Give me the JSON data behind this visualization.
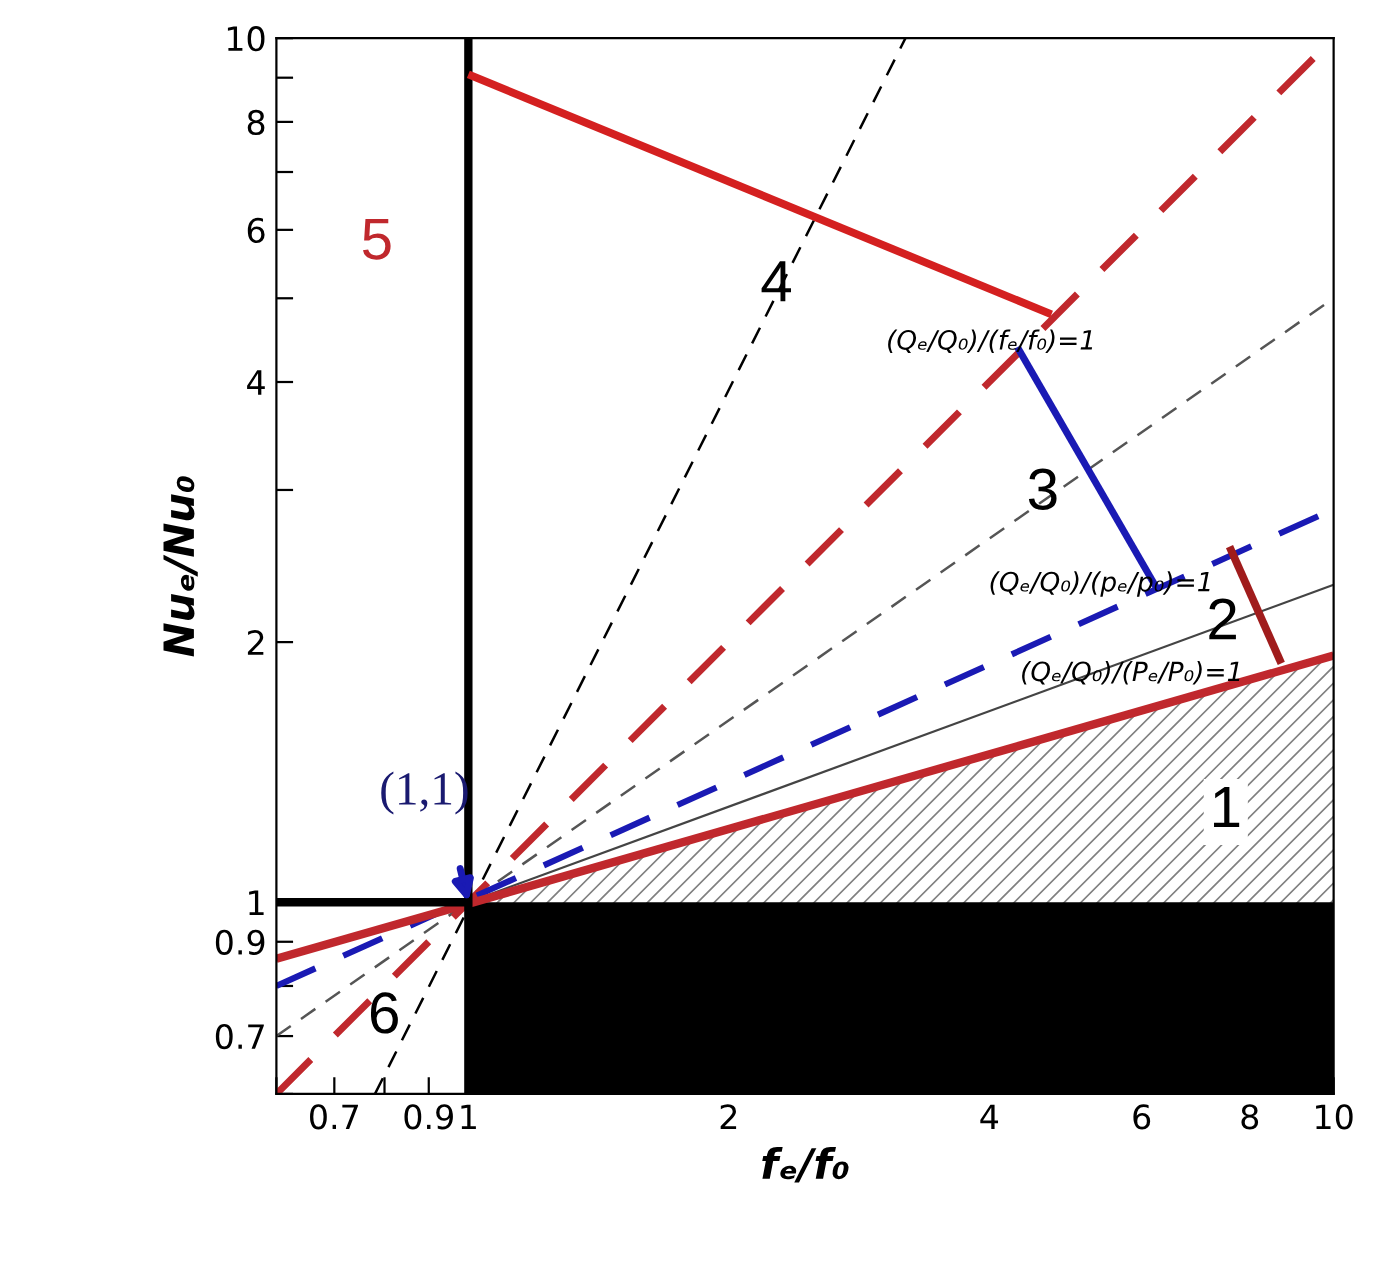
{
  "chart_data": {
    "type": "line",
    "xlabel": "fₑ/f₀",
    "ylabel": "Nuₑ/Nu₀",
    "log": "xy",
    "xlim": [
      0.6,
      10
    ],
    "ylim": [
      0.6,
      10
    ],
    "xticks": [
      {
        "value": 0.6,
        "label": null
      },
      0.7,
      {
        "value": 0.8,
        "label": null
      },
      0.9,
      1,
      2,
      {
        "value": 3,
        "label": null
      },
      4,
      {
        "value": 5,
        "label": null
      },
      6,
      {
        "value": 7,
        "label": null
      },
      8,
      {
        "value": 9,
        "label": null
      },
      10
    ],
    "yticks": [
      {
        "value": 0.6,
        "label": null
      },
      0.7,
      {
        "value": 0.8,
        "label": null
      },
      0.9,
      1,
      2,
      {
        "value": 3,
        "label": null
      },
      4,
      {
        "value": 5,
        "label": null
      },
      6,
      {
        "value": 7,
        "label": null
      },
      8,
      {
        "value": 9,
        "label": null
      },
      10
    ],
    "grid": false,
    "legend": false,
    "series": [
      {
        "type": "area",
        "color": "#808080",
        "x": [
          1,
          10
        ],
        "values": [
          1,
          1.93
        ]
      },
      {
        "type": "area",
        "color": "#000000",
        "x": [
          1,
          10
        ],
        "values": [
          1,
          1
        ]
      },
      {
        "color": "#000000",
        "line_style": "dashed",
        "x": [
          0.78,
          3.2
        ],
        "values": [
          0.6,
          10
        ]
      },
      {
        "color": "#555555",
        "line_style": "dashed",
        "x": [
          0.6,
          10
        ],
        "values": [
          0.7,
          5.0
        ]
      },
      {
        "color": "#444444",
        "line_style": "solid",
        "x": [
          1,
          10
        ],
        "values": [
          1,
          2.33
        ]
      },
      {
        "color": "#c0282d",
        "line_style": "dashed",
        "x": [
          0.6,
          10
        ],
        "values": [
          0.6,
          10
        ]
      },
      {
        "color": "#1a1ab4",
        "line_style": "dashed",
        "x": [
          0.6,
          10
        ],
        "values": [
          0.8,
          2.85
        ]
      },
      {
        "color": "#c0282d",
        "line_style": "solid",
        "x": [
          0.6,
          10
        ],
        "values": [
          0.86,
          1.93
        ]
      },
      {
        "color": "#000000",
        "line_style": "solid",
        "x": [
          1,
          1
        ],
        "values": [
          0.6,
          10
        ]
      },
      {
        "color": "#000000",
        "line_style": "solid",
        "x": [
          0.6,
          1
        ],
        "values": [
          1,
          1
        ]
      },
      {
        "color": "#d42020",
        "line_style": "solid",
        "x": [
          1,
          4.72
        ],
        "values": [
          9.08,
          4.79
        ]
      },
      {
        "color": "#1a1ab4",
        "line_style": "solid",
        "x": [
          4.31,
          6.26
        ],
        "values": [
          4.39,
          2.3
        ]
      },
      {
        "color": "#a01c1c",
        "line_style": "solid",
        "x": [
          7.58,
          8.7
        ],
        "values": [
          2.58,
          1.89
        ]
      }
    ],
    "annotations": [
      "1",
      "2",
      "3",
      "4",
      "5",
      "6",
      {
        "text": "(1,1)",
        "x": 1,
        "y": 1
      },
      "(Qₑ/Q₀)/(fₑ/f₀)=1",
      "(Qₑ/Q₀)/(pₑ/p₀)=1",
      "(Qₑ/Q₀)/(Pₑ/P₀)=1"
    ]
  }
}
